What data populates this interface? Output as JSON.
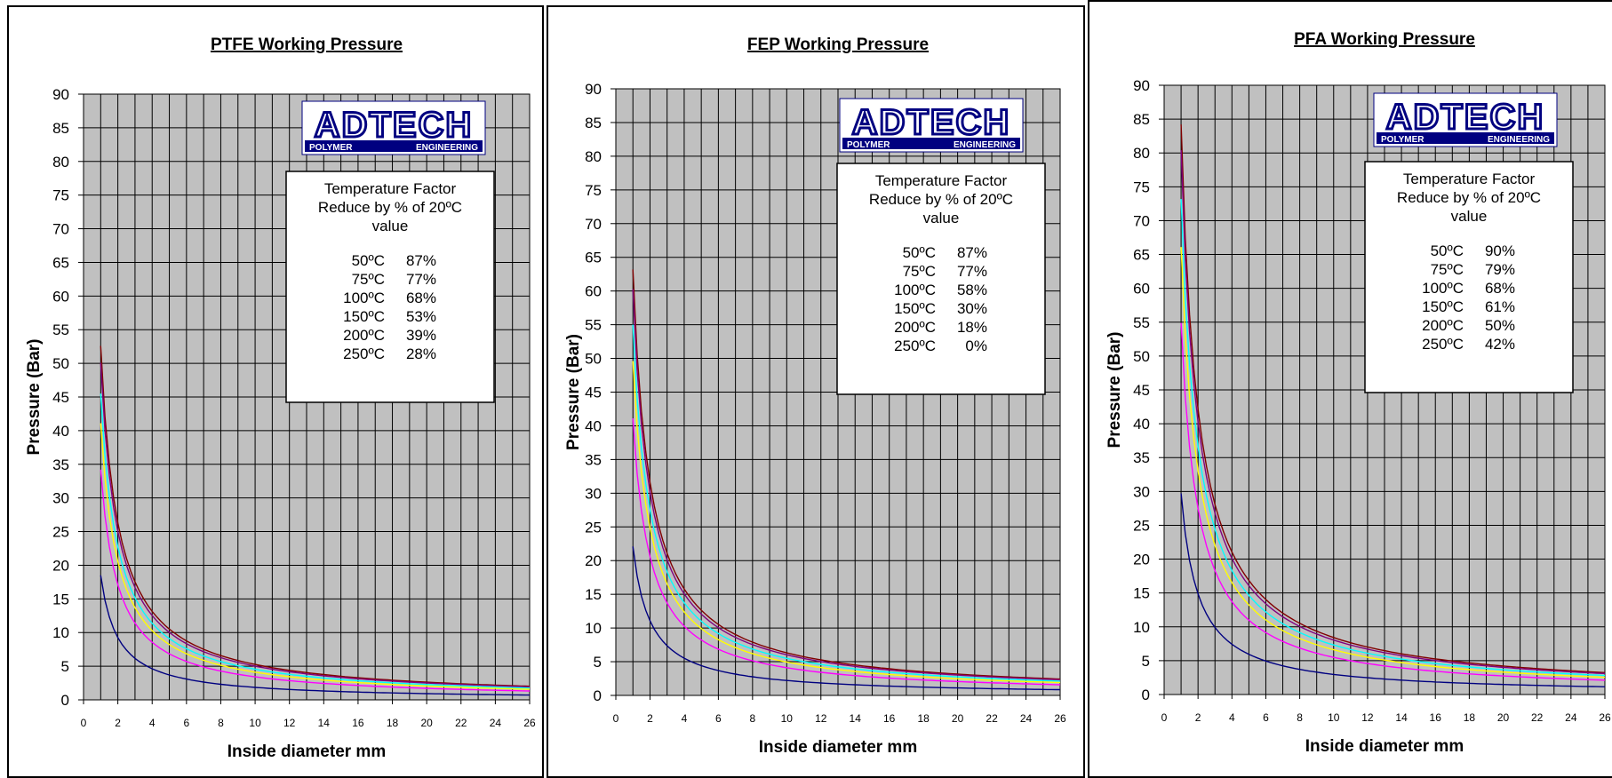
{
  "chart_data": [
    {
      "type": "line",
      "title": "PTFE Working Pressure",
      "xlabel": "Inside diameter mm",
      "ylabel": "Pressure (Bar)",
      "xlim": [
        0,
        26
      ],
      "ylim": [
        0,
        90
      ],
      "xticks": [
        0,
        2,
        4,
        6,
        8,
        10,
        12,
        14,
        16,
        18,
        20,
        22,
        24,
        26
      ],
      "yticks": [
        0,
        5,
        10,
        15,
        20,
        25,
        30,
        35,
        40,
        45,
        50,
        55,
        60,
        65,
        70,
        75,
        80,
        85,
        90
      ],
      "grid": true,
      "background": "#c0c0c0",
      "logo": {
        "main": "ADTECH",
        "sub_left": "POLYMER",
        "sub_right": "ENGINEERING"
      },
      "temperature_box": {
        "heading": [
          "Temperature Factor",
          "Reduce by % of 20ºC",
          "value"
        ],
        "rows": [
          {
            "temp": "50ºC",
            "pct": "87%"
          },
          {
            "temp": "75ºC",
            "pct": "77%"
          },
          {
            "temp": "100ºC",
            "pct": "68%"
          },
          {
            "temp": "150ºC",
            "pct": "53%"
          },
          {
            "temp": "200ºC",
            "pct": "39%"
          },
          {
            "temp": "250ºC",
            "pct": "28%"
          }
        ]
      },
      "series": [
        {
          "color": "#800000",
          "k": 52.6
        },
        {
          "color": "#800080",
          "k": 50.1
        },
        {
          "color": "#00ffff",
          "k": 45.5
        },
        {
          "color": "#ffff00",
          "k": 41.1
        },
        {
          "color": "#ff00ff",
          "k": 34.2
        },
        {
          "color": "#000080",
          "k": 18.5
        }
      ]
    },
    {
      "type": "line",
      "title": "FEP Working Pressure",
      "xlabel": "Inside diameter mm",
      "ylabel": "Pressure (Bar)",
      "xlim": [
        0,
        26
      ],
      "ylim": [
        0,
        90
      ],
      "xticks": [
        0,
        2,
        4,
        6,
        8,
        10,
        12,
        14,
        16,
        18,
        20,
        22,
        24,
        26
      ],
      "yticks": [
        0,
        5,
        10,
        15,
        20,
        25,
        30,
        35,
        40,
        45,
        50,
        55,
        60,
        65,
        70,
        75,
        80,
        85,
        90
      ],
      "grid": true,
      "background": "#c0c0c0",
      "logo": {
        "main": "ADTECH",
        "sub_left": "POLYMER",
        "sub_right": "ENGINEERING"
      },
      "temperature_box": {
        "heading": [
          "Temperature Factor",
          "Reduce by % of 20ºC",
          "value"
        ],
        "rows": [
          {
            "temp": "50ºC",
            "pct": "87%"
          },
          {
            "temp": "75ºC",
            "pct": "77%"
          },
          {
            "temp": "100ºC",
            "pct": "58%"
          },
          {
            "temp": "150ºC",
            "pct": "30%"
          },
          {
            "temp": "200ºC",
            "pct": "18%"
          },
          {
            "temp": "250ºC",
            "pct": "0%"
          }
        ]
      },
      "series": [
        {
          "color": "#800000",
          "k": 63.2
        },
        {
          "color": "#800080",
          "k": 60.3
        },
        {
          "color": "#00ffff",
          "k": 55.0
        },
        {
          "color": "#ffff00",
          "k": 49.6
        },
        {
          "color": "#ff00ff",
          "k": 41.1
        },
        {
          "color": "#000080",
          "k": 22.1
        }
      ]
    },
    {
      "type": "line",
      "title": "PFA Working Pressure",
      "xlabel": "Inside diameter mm",
      "ylabel": "Pressure (Bar)",
      "xlim": [
        0,
        26
      ],
      "ylim": [
        0,
        90
      ],
      "xticks": [
        0,
        2,
        4,
        6,
        8,
        10,
        12,
        14,
        16,
        18,
        20,
        22,
        24,
        26
      ],
      "yticks": [
        0,
        5,
        10,
        15,
        20,
        25,
        30,
        35,
        40,
        45,
        50,
        55,
        60,
        65,
        70,
        75,
        80,
        85,
        90
      ],
      "grid": true,
      "background": "#c0c0c0",
      "logo": {
        "main": "ADTECH",
        "sub_left": "POLYMER",
        "sub_right": "ENGINEERING"
      },
      "temperature_box": {
        "heading": [
          "Temperature Factor",
          "Reduce by % of 20ºC",
          "value"
        ],
        "rows": [
          {
            "temp": "50ºC",
            "pct": "90%"
          },
          {
            "temp": "75ºC",
            "pct": "79%"
          },
          {
            "temp": "100ºC",
            "pct": "68%"
          },
          {
            "temp": "150ºC",
            "pct": "61%"
          },
          {
            "temp": "200ºC",
            "pct": "50%"
          },
          {
            "temp": "250ºC",
            "pct": "42%"
          }
        ]
      },
      "series": [
        {
          "color": "#800000",
          "k": 84.2
        },
        {
          "color": "#800080",
          "k": 80.4
        },
        {
          "color": "#00ffff",
          "k": 73.2
        },
        {
          "color": "#ffff00",
          "k": 66.1
        },
        {
          "color": "#ff00ff",
          "k": 54.9
        },
        {
          "color": "#000080",
          "k": 29.7
        }
      ]
    }
  ]
}
